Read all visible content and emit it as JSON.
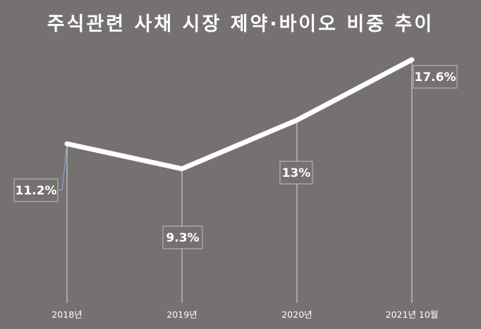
{
  "chart_data": {
    "type": "line",
    "title": "주식관련 사채 시장 제약·바이오 비중 추이",
    "xlabel": "",
    "ylabel": "",
    "categories": [
      "2018년",
      "2019년",
      "2020년",
      "2021년 10월"
    ],
    "series": [
      {
        "values": [
          11.2,
          9.3,
          13,
          17.6
        ],
        "data_labels": [
          "11.2%",
          "9.3%",
          "13%",
          "17.6%"
        ]
      }
    ],
    "ylim": [
      0,
      20
    ],
    "grid": false,
    "legend": "none",
    "colors": {
      "background": "#757170",
      "line": "#ffffff",
      "text": "#ffffff",
      "drop_lines": "#d9d9d9",
      "label_border": "#bfbfbf"
    }
  }
}
